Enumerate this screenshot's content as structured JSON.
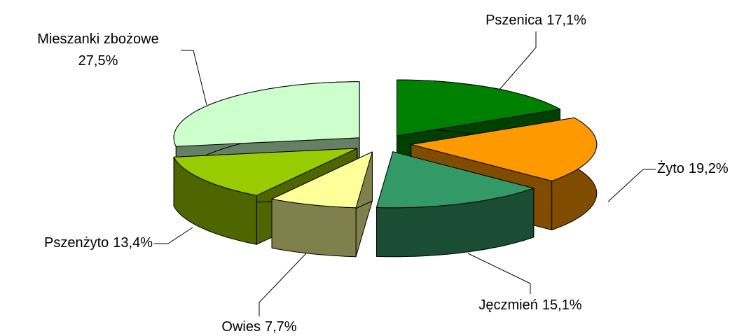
{
  "chart_data": {
    "type": "pie3d",
    "categories": [
      "Pszenica",
      "Żyto",
      "Jęczmień",
      "Owies",
      "Pszenżyto",
      "Mieszanki zbożowe"
    ],
    "values": [
      17.1,
      19.2,
      15.1,
      7.7,
      13.4,
      27.5
    ],
    "value_labels": [
      "17,1%",
      "19,2%",
      "15,1%",
      "7,7%",
      "13,4%",
      "27,5%"
    ],
    "colors": [
      "#008000",
      "#ff9900",
      "#339966",
      "#ffff99",
      "#99cc00",
      "#ccffcc"
    ]
  }
}
